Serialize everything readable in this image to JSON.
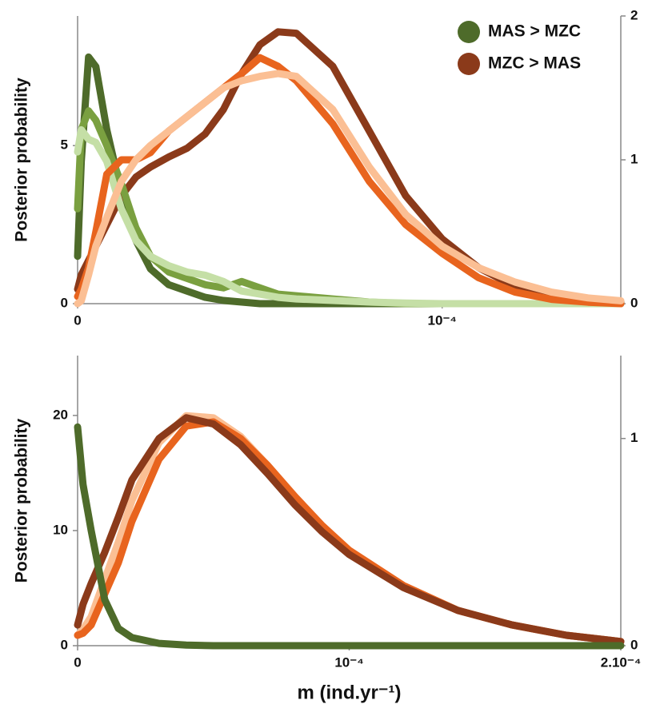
{
  "chart_data": [
    {
      "type": "line",
      "ylabel": "Posterior probability",
      "x": [
        0,
        1e-06,
        3e-06,
        5e-06,
        8e-06,
        1.2e-05,
        1.6e-05,
        2e-05,
        2.5e-05,
        3e-05,
        3.5e-05,
        4e-05,
        4.5e-05,
        5e-05,
        5.5e-05,
        6e-05,
        7e-05,
        8e-05,
        9e-05,
        0.0001,
        0.00011,
        0.00012,
        0.00013,
        0.00014,
        0.000149
      ],
      "xlim": [
        0,
        0.000149
      ],
      "xticks": [
        0,
        {
          "value": 0.0001,
          "label": "10⁻⁴"
        }
      ],
      "ylim": [
        0,
        9.1
      ],
      "yticks": [
        0,
        5
      ],
      "y2lim": [
        0,
        2
      ],
      "y2ticks": [
        0,
        1,
        2
      ],
      "legend": "upper right",
      "series": [
        {
          "name": "MAS > MZC",
          "color": "#4e6b2a",
          "values": [
            1.5,
            4.5,
            7.8,
            7.5,
            5.5,
            3.5,
            2,
            1.1,
            0.6,
            0.4,
            0.2,
            0.1,
            0.05,
            0,
            0,
            0,
            0,
            0,
            0,
            0,
            0,
            0,
            0,
            0,
            0
          ]
        },
        {
          "name": "MZC > MAS",
          "color": "#8b3a1a",
          "axis": "y2",
          "values": [
            0.1,
            0.2,
            0.3,
            0.4,
            0.55,
            0.75,
            0.88,
            0.95,
            1.02,
            1.08,
            1.18,
            1.35,
            1.6,
            1.8,
            1.89,
            1.88,
            1.65,
            1.2,
            0.75,
            0.45,
            0.25,
            0.12,
            0.06,
            0.03,
            0.01
          ]
        },
        {
          "color": "#7aa040",
          "values": [
            3,
            5.5,
            6.1,
            5.8,
            5,
            3.8,
            2.4,
            1.5,
            1,
            0.8,
            0.6,
            0.5,
            0.7,
            0.5,
            0.3,
            0.25,
            0.15,
            0.05,
            0,
            0,
            0,
            0,
            0,
            0,
            0
          ]
        },
        {
          "color": "#c5dfa6",
          "values": [
            4.8,
            5.5,
            5.2,
            5.1,
            4.5,
            3,
            2,
            1.5,
            1.2,
            1,
            0.9,
            0.7,
            0.4,
            0.3,
            0.2,
            0.15,
            0.1,
            0.05,
            0.02,
            0,
            0,
            0,
            0,
            0,
            0
          ]
        },
        {
          "color": "#e8641e",
          "axis": "y2",
          "values": [
            0.05,
            0.1,
            0.25,
            0.5,
            0.9,
            1,
            1,
            1.05,
            1.2,
            1.3,
            1.4,
            1.5,
            1.6,
            1.71,
            1.65,
            1.55,
            1.25,
            0.85,
            0.55,
            0.35,
            0.18,
            0.08,
            0.03,
            0.01,
            0
          ]
        },
        {
          "color": "#fbbf94",
          "axis": "y2",
          "values": [
            0,
            0.02,
            0.2,
            0.4,
            0.6,
            0.85,
            1,
            1.1,
            1.2,
            1.3,
            1.4,
            1.5,
            1.55,
            1.58,
            1.6,
            1.58,
            1.35,
            0.95,
            0.62,
            0.4,
            0.25,
            0.15,
            0.08,
            0.04,
            0.02
          ]
        }
      ]
    },
    {
      "type": "line",
      "ylabel": "Posterior probability",
      "xlabel": "m (ind.yr⁻¹)",
      "x": [
        0,
        2e-06,
        5e-06,
        1e-05,
        1.5e-05,
        2e-05,
        3e-05,
        4e-05,
        5e-05,
        6e-05,
        7e-05,
        8e-05,
        9e-05,
        0.0001,
        0.00012,
        0.00014,
        0.00016,
        0.00018,
        0.0002
      ],
      "xlim": [
        0,
        0.0002
      ],
      "xticks": [
        0,
        {
          "value": 0.0001,
          "label": "10⁻⁴"
        },
        {
          "value": 0.0002,
          "label": "2.10⁻⁴"
        }
      ],
      "ylim": [
        0,
        25.2
      ],
      "yticks": [
        0,
        10,
        20
      ],
      "y2lim": [
        0,
        1.4
      ],
      "y2ticks": [
        0,
        1
      ],
      "series": [
        {
          "color": "#fbbf94",
          "axis": "y2",
          "values": [
            0.05,
            0.08,
            0.14,
            0.32,
            0.5,
            0.7,
            0.98,
            1.11,
            1.1,
            1.01,
            0.87,
            0.72,
            0.58,
            0.46,
            0.29,
            0.17,
            0.1,
            0.05,
            0.02
          ]
        },
        {
          "color": "#e8641e",
          "axis": "y2",
          "values": [
            0.05,
            0.06,
            0.1,
            0.25,
            0.4,
            0.6,
            0.9,
            1.06,
            1.08,
            1,
            0.87,
            0.72,
            0.58,
            0.46,
            0.29,
            0.17,
            0.1,
            0.05,
            0.02
          ]
        },
        {
          "color": "#8b3a1a",
          "axis": "y2",
          "values": [
            0.1,
            0.2,
            0.3,
            0.45,
            0.62,
            0.8,
            1,
            1.1,
            1.07,
            0.97,
            0.83,
            0.68,
            0.55,
            0.44,
            0.28,
            0.17,
            0.1,
            0.05,
            0.02
          ]
        },
        {
          "color": "#4e6b2a",
          "values": [
            19,
            14,
            10,
            4,
            1.5,
            0.7,
            0.2,
            0.05,
            0,
            0,
            0,
            0,
            0,
            0,
            0,
            0,
            0,
            0,
            0
          ]
        }
      ]
    }
  ]
}
